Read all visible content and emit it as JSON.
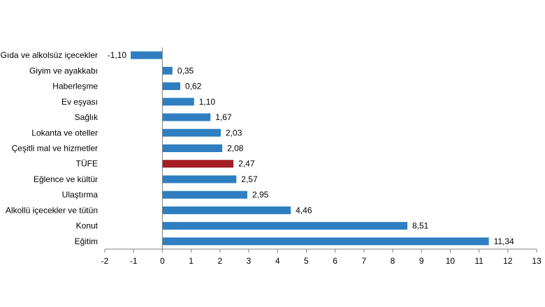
{
  "chart_data": {
    "type": "bar",
    "orientation": "horizontal",
    "categories": [
      "Gıda ve alkolsüz içecekler",
      "Giyim ve ayakkabı",
      "Haberleşme",
      "Ev eşyası",
      "Sağlık",
      "Lokanta ve oteller",
      "Çeşitli mal ve hizmetler",
      "TÜFE",
      "Eğlence ve kültür",
      "Ulaştırma",
      "Alkollü içecekler ve tütün",
      "Konut",
      "Eğitim"
    ],
    "values": [
      -1.1,
      0.35,
      0.62,
      1.1,
      1.67,
      2.03,
      2.08,
      2.47,
      2.57,
      2.95,
      4.46,
      8.51,
      11.34
    ],
    "value_labels": [
      "-1,10",
      "0,35",
      "0,62",
      "1,10",
      "1,67",
      "2,03",
      "2,08",
      "2,47",
      "2,57",
      "2,95",
      "4,46",
      "8,51",
      "11,34"
    ],
    "highlight_category": "TÜFE",
    "colors": {
      "bar": "#2E7EC1",
      "highlight": "#A31D23",
      "axis": "#808080"
    },
    "xlim": [
      -2,
      13
    ],
    "xticks": [
      "-2",
      "-1",
      "0",
      "1",
      "2",
      "3",
      "4",
      "5",
      "6",
      "7",
      "8",
      "9",
      "10",
      "11",
      "12",
      "13"
    ],
    "title": "",
    "xlabel": "",
    "ylabel": "",
    "grid": false,
    "legend": "none"
  }
}
